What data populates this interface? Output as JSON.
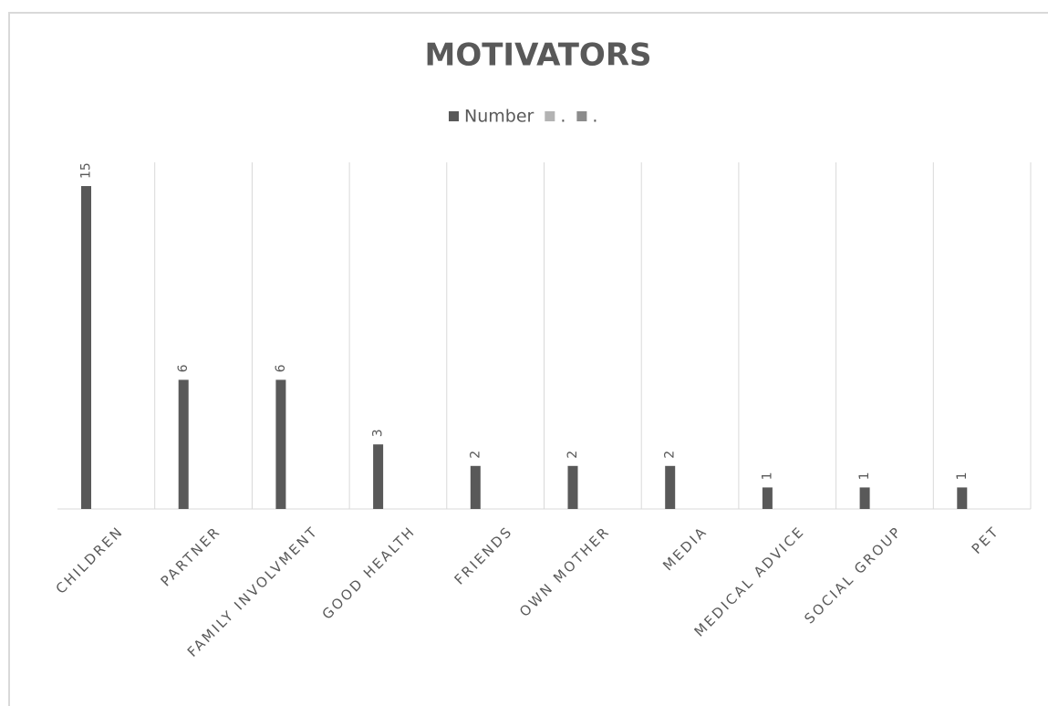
{
  "chart_data": {
    "type": "bar",
    "title": "MOTIVATORS",
    "categories": [
      "CHILDREN",
      "PARTNER",
      "FAMILY INVOLVMENT",
      "GOOD HEALTH",
      "FRIENDS",
      "OWN MOTHER",
      "MEDIA",
      "MEDICAL ADVICE",
      "SOCIAL GROUP",
      "PET"
    ],
    "series": [
      {
        "name": "Number",
        "color": "#595959",
        "values": [
          15,
          6,
          6,
          3,
          2,
          2,
          2,
          1,
          1,
          1
        ]
      },
      {
        "name": ".",
        "color": "#b3b3b3",
        "values": [
          null,
          null,
          null,
          null,
          null,
          null,
          null,
          null,
          null,
          null
        ]
      },
      {
        "name": ".",
        "color": "#8c8c8c",
        "values": [
          null,
          null,
          null,
          null,
          null,
          null,
          null,
          null,
          null,
          null
        ]
      }
    ],
    "ylim": [
      0,
      16
    ],
    "legend": "top",
    "data_labels": true
  }
}
